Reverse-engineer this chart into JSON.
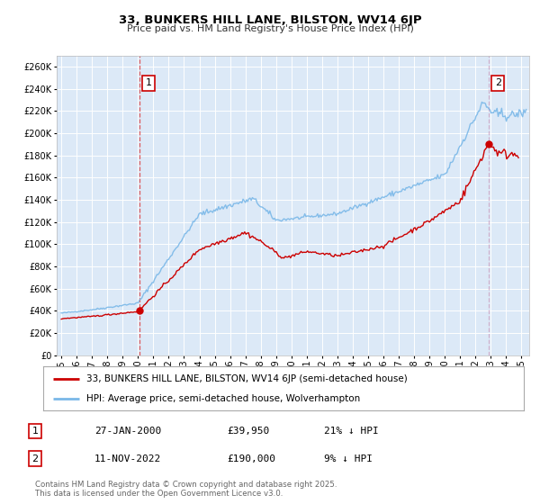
{
  "title": "33, BUNKERS HILL LANE, BILSTON, WV14 6JP",
  "subtitle": "Price paid vs. HM Land Registry's House Price Index (HPI)",
  "background_color": "#ffffff",
  "plot_bg_color": "#dce9f7",
  "grid_color": "#ffffff",
  "hpi_color": "#7ab8e8",
  "price_color": "#cc0000",
  "vline1_color": "#dd4444",
  "vline2_color": "#cc99bb",
  "legend_line1": "33, BUNKERS HILL LANE, BILSTON, WV14 6JP (semi-detached house)",
  "legend_line2": "HPI: Average price, semi-detached house, Wolverhampton",
  "ann1_label": "1",
  "ann1_date": "27-JAN-2000",
  "ann1_price": "£39,950",
  "ann1_pct": "21% ↓ HPI",
  "ann1_x": 2000.07,
  "ann1_y": 39950,
  "ann2_label": "2",
  "ann2_date": "11-NOV-2022",
  "ann2_price": "£190,000",
  "ann2_pct": "9% ↓ HPI",
  "ann2_x": 2022.86,
  "ann2_y": 190000,
  "footer": "Contains HM Land Registry data © Crown copyright and database right 2025.\nThis data is licensed under the Open Government Licence v3.0.",
  "ylim": [
    0,
    270000
  ],
  "yticks": [
    0,
    20000,
    40000,
    60000,
    80000,
    100000,
    120000,
    140000,
    160000,
    180000,
    200000,
    220000,
    240000,
    260000
  ],
  "xlim_start": 1994.7,
  "xlim_end": 2025.5,
  "xticks": [
    1995,
    1996,
    1997,
    1998,
    1999,
    2000,
    2001,
    2002,
    2003,
    2004,
    2005,
    2006,
    2007,
    2008,
    2009,
    2010,
    2011,
    2012,
    2013,
    2014,
    2015,
    2016,
    2017,
    2018,
    2019,
    2020,
    2021,
    2022,
    2023,
    2024,
    2025
  ]
}
